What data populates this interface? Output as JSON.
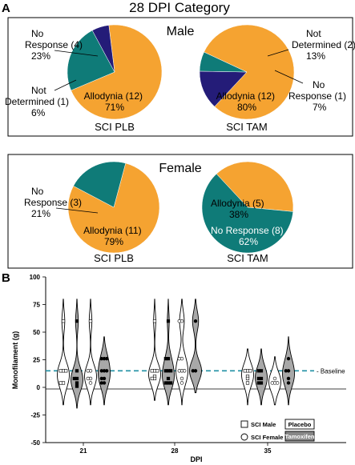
{
  "panel_a": {
    "letter": "A",
    "title": "28 DPI Category",
    "groups": [
      {
        "heading": "Male",
        "pies": [
          {
            "caption": "SCI PLB"
          },
          {
            "caption": "SCI TAM"
          }
        ]
      },
      {
        "heading": "Female",
        "pies": [
          {
            "caption": "SCI PLB"
          },
          {
            "caption": "SCI TAM"
          }
        ]
      }
    ]
  },
  "panel_b": {
    "letter": "B",
    "legend": {
      "sci_male": "SCI Male",
      "sci_female": "SCI Female",
      "placebo": "Placebo",
      "tamoxifen": "Tamoxifen"
    }
  },
  "colors": {
    "allodynia": "#F5A331",
    "no_response": "#0F7B78",
    "not_determined": "#241C78",
    "baseline": "#1F8FA3",
    "tamoxifen_fill": "#A8A8A8",
    "placebo_fill": "#FFFFFF"
  },
  "chart_data": [
    {
      "type": "pie",
      "group": "Male",
      "caption": "SCI PLB",
      "slices": [
        {
          "label_lines": [
            "Allodynia (12)",
            "71%"
          ],
          "count": 12,
          "percent": 71,
          "category": "allodynia"
        },
        {
          "label_lines": [
            "No",
            "Response (4)",
            "23%"
          ],
          "count": 4,
          "percent": 23,
          "category": "no_response"
        },
        {
          "label_lines": [
            "Not",
            "Determined (1)",
            "6%"
          ],
          "count": 1,
          "percent": 6,
          "category": "not_determined"
        }
      ]
    },
    {
      "type": "pie",
      "group": "Male",
      "caption": "SCI TAM",
      "slices": [
        {
          "label_lines": [
            "Allodynia (12)",
            "80%"
          ],
          "count": 12,
          "percent": 80,
          "category": "allodynia"
        },
        {
          "label_lines": [
            "Not",
            "Determined (2)",
            "13%"
          ],
          "count": 2,
          "percent": 13,
          "category": "not_determined"
        },
        {
          "label_lines": [
            "No",
            "Response (1)",
            "7%"
          ],
          "count": 1,
          "percent": 7,
          "category": "no_response"
        }
      ]
    },
    {
      "type": "pie",
      "group": "Female",
      "caption": "SCI PLB",
      "slices": [
        {
          "label_lines": [
            "Allodynia (11)",
            "79%"
          ],
          "count": 11,
          "percent": 79,
          "category": "allodynia"
        },
        {
          "label_lines": [
            "No",
            "Response (3)",
            "21%"
          ],
          "count": 3,
          "percent": 21,
          "category": "no_response"
        }
      ]
    },
    {
      "type": "pie",
      "group": "Female",
      "caption": "SCI TAM",
      "slices": [
        {
          "label_lines": [
            "Allodynia (5)",
            "38%"
          ],
          "count": 5,
          "percent": 38,
          "category": "allodynia"
        },
        {
          "label_lines": [
            "No Response (8)",
            "62%"
          ],
          "count": 8,
          "percent": 62,
          "category": "no_response"
        }
      ]
    },
    {
      "type": "scatter",
      "subtype": "violin",
      "xlabel": "DPI",
      "ylabel": "Monofilament (g)",
      "ylim": [
        -50,
        100
      ],
      "yticks": [
        -50,
        -25,
        0,
        25,
        50,
        75,
        100
      ],
      "categories": [
        "21",
        "28",
        "35"
      ],
      "baseline": {
        "value": 15,
        "label": "Baseline"
      },
      "groups": [
        {
          "dpi": "21",
          "sex": "male",
          "treatment": "placebo",
          "points": [
            60,
            15,
            15,
            15,
            4,
            4
          ]
        },
        {
          "dpi": "21",
          "sex": "male",
          "treatment": "tamoxifen",
          "points": [
            60,
            15,
            8,
            8,
            4,
            1
          ]
        },
        {
          "dpi": "21",
          "sex": "female",
          "treatment": "placebo",
          "points": [
            60,
            15,
            15,
            8,
            8,
            4
          ]
        },
        {
          "dpi": "21",
          "sex": "female",
          "treatment": "tamoxifen",
          "points": [
            26,
            26,
            26,
            15,
            15,
            15,
            8,
            8,
            4,
            4
          ]
        },
        {
          "dpi": "28",
          "sex": "male",
          "treatment": "placebo",
          "points": [
            60,
            15,
            15,
            15,
            10,
            8,
            8
          ]
        },
        {
          "dpi": "28",
          "sex": "male",
          "treatment": "tamoxifen",
          "points": [
            60,
            26,
            26,
            15,
            15,
            15,
            8,
            4,
            4,
            4
          ]
        },
        {
          "dpi": "28",
          "sex": "female",
          "treatment": "placebo",
          "points": [
            60,
            60,
            26,
            26,
            15,
            15,
            15,
            8,
            4
          ]
        },
        {
          "dpi": "28",
          "sex": "female",
          "treatment": "tamoxifen",
          "points": [
            60,
            15,
            15
          ]
        },
        {
          "dpi": "35",
          "sex": "male",
          "treatment": "placebo",
          "points": [
            15,
            15,
            15,
            10,
            8,
            4
          ]
        },
        {
          "dpi": "35",
          "sex": "male",
          "treatment": "tamoxifen",
          "points": [
            15,
            15,
            8,
            8,
            4,
            4
          ]
        },
        {
          "dpi": "35",
          "sex": "female",
          "treatment": "placebo",
          "points": [
            8,
            4,
            4,
            4
          ]
        },
        {
          "dpi": "35",
          "sex": "female",
          "treatment": "tamoxifen",
          "points": [
            26,
            15,
            15,
            8,
            4
          ]
        }
      ]
    }
  ]
}
